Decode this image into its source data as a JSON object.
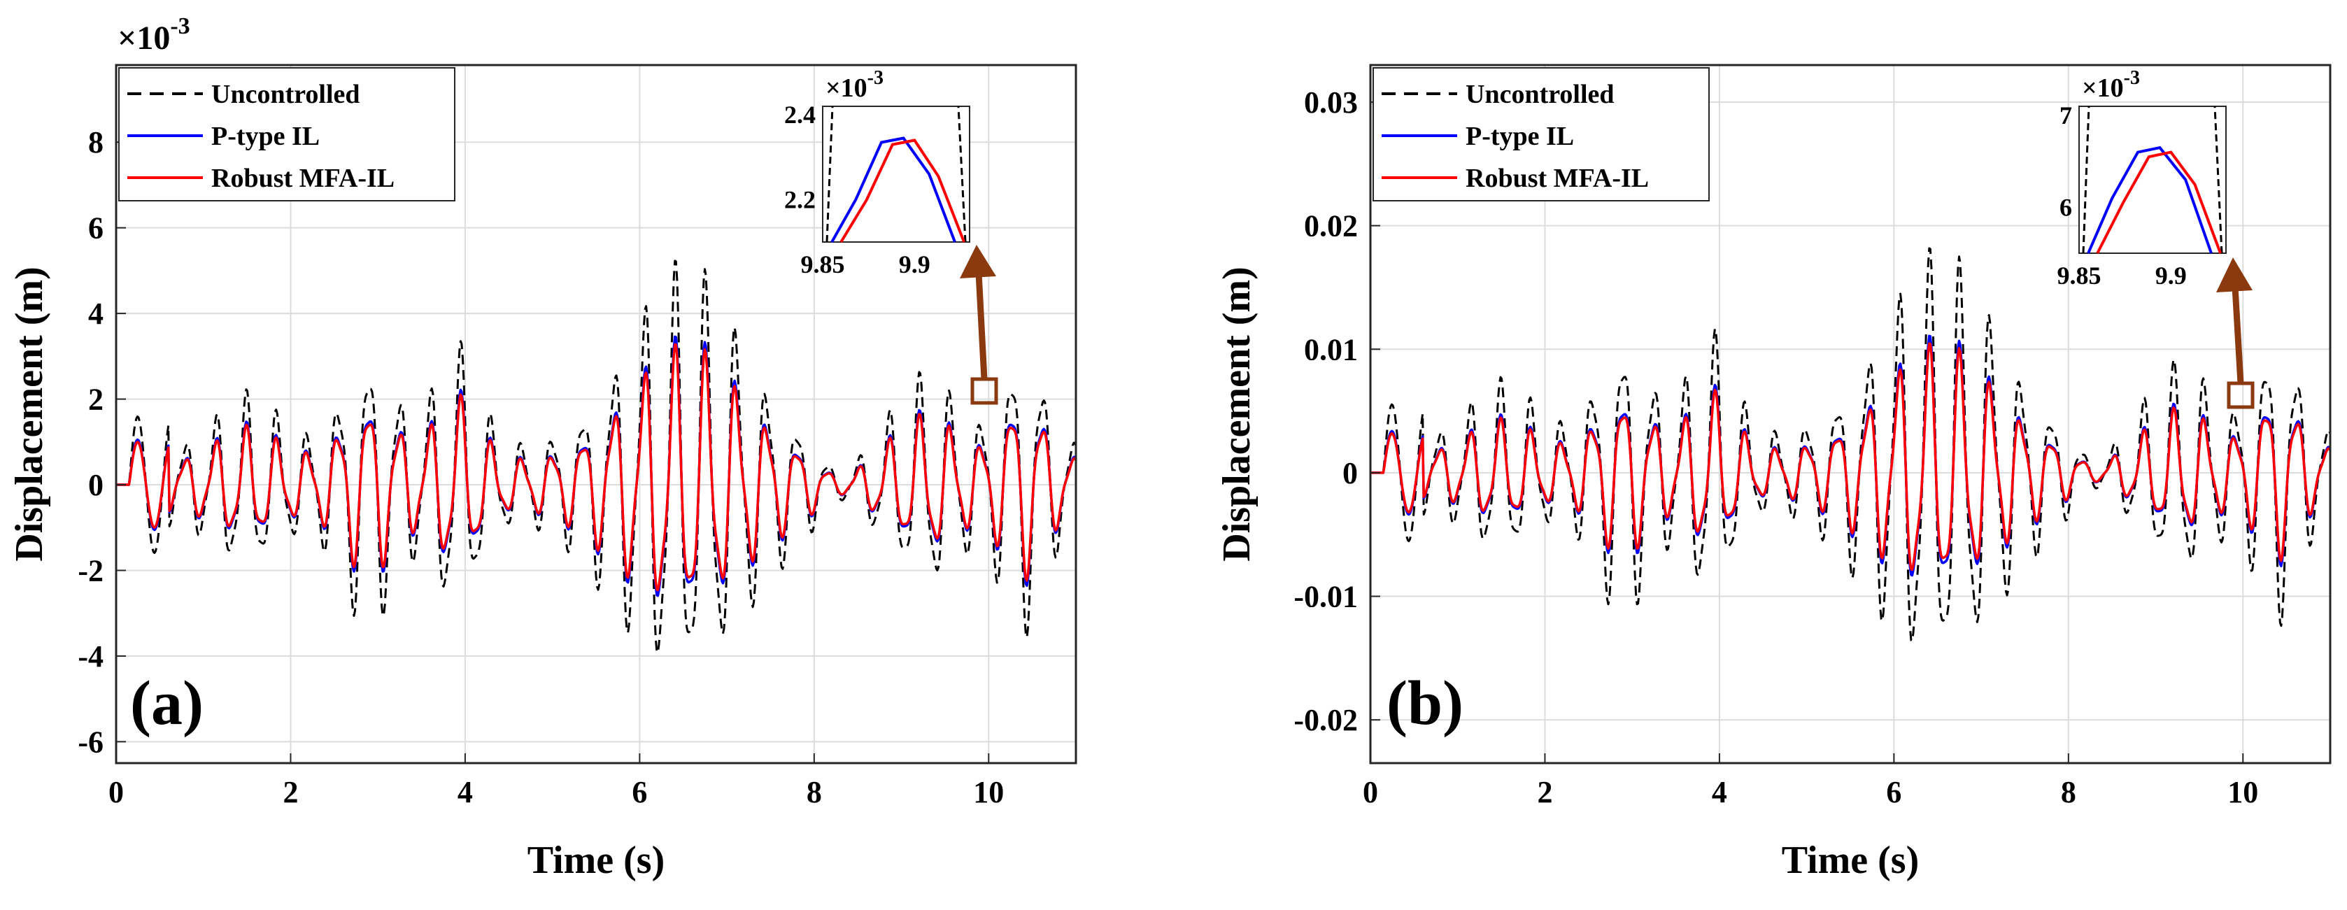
{
  "chart_data": [
    {
      "panel": "(a)",
      "type": "line",
      "xlabel": "Time (s)",
      "ylabel": "Displacement (m)",
      "xlim": [
        0,
        11
      ],
      "ylim": [
        -6.5,
        9.8
      ],
      "y_exponent_base": "×10",
      "y_exponent_power": "-3",
      "xticks": [
        0,
        2,
        4,
        6,
        8,
        10
      ],
      "yticks": [
        -6,
        -4,
        -2,
        0,
        2,
        4,
        6,
        8
      ],
      "ytick_labels": [
        "-6",
        "-4",
        "-2",
        "0",
        "2",
        "4",
        "6",
        "8"
      ],
      "grid": true,
      "legend_position": "top-left",
      "series": [
        {
          "name": "Uncontrolled",
          "color": "#000000",
          "style": "dashed",
          "peak": 5.9
        },
        {
          "name": "P-type IL",
          "color": "#0000ff",
          "style": "solid",
          "peak": 3.9
        },
        {
          "name": "Robust MFA-IL",
          "color": "#ff0000",
          "style": "solid",
          "peak": 3.7
        }
      ],
      "marker_point": {
        "x": 9.9,
        "y": 2.2
      },
      "inset": {
        "xlim": [
          9.85,
          9.93
        ],
        "ylim": [
          2.1,
          2.42
        ],
        "xticks": [
          9.85,
          9.9
        ],
        "xtick_labels": [
          "9.85",
          "9.9"
        ],
        "yticks": [
          2.2,
          2.4
        ],
        "ytick_labels": [
          "2.2",
          "2.4"
        ],
        "exponent_base": "×10",
        "exponent_power": "-3",
        "blue_x": [
          9.855,
          9.868,
          9.882,
          9.894,
          9.908,
          9.922
        ],
        "blue_y": [
          2.05,
          2.2,
          2.335,
          2.345,
          2.26,
          2.05
        ],
        "red_x": [
          9.86,
          9.874,
          9.888,
          9.9,
          9.913,
          9.927
        ],
        "red_y": [
          2.05,
          2.2,
          2.33,
          2.34,
          2.255,
          2.05
        ]
      }
    },
    {
      "panel": "(b)",
      "type": "line",
      "xlabel": "Time (s)",
      "ylabel": "Displacement (m)",
      "xlim": [
        0,
        11
      ],
      "ylim": [
        -0.0235,
        0.033
      ],
      "xticks": [
        0,
        2,
        4,
        6,
        8,
        10
      ],
      "yticks": [
        -0.02,
        -0.01,
        0,
        0.01,
        0.02,
        0.03
      ],
      "ytick_labels": [
        "-0.02",
        "-0.01",
        "0",
        "0.01",
        "0.02",
        "0.03"
      ],
      "grid": true,
      "legend_position": "top-left",
      "series": [
        {
          "name": "Uncontrolled",
          "color": "#000000",
          "style": "dashed",
          "peak": 0.0205
        },
        {
          "name": "P-type IL",
          "color": "#0000ff",
          "style": "solid",
          "peak": 0.0125
        },
        {
          "name": "Robust MFA-IL",
          "color": "#ff0000",
          "style": "solid",
          "peak": 0.0118
        }
      ],
      "marker_point": {
        "x": 9.9,
        "y": 0.0065
      },
      "inset": {
        "xlim": [
          9.85,
          9.93
        ],
        "ylim": [
          5.5,
          7.1
        ],
        "xticks": [
          9.85,
          9.9
        ],
        "xtick_labels": [
          "9.85",
          "9.9"
        ],
        "yticks": [
          6,
          7
        ],
        "ytick_labels": [
          "6",
          "7"
        ],
        "exponent_base": "×10",
        "exponent_power": "-3",
        "blue_x": [
          9.855,
          9.868,
          9.882,
          9.894,
          9.908,
          9.922
        ],
        "blue_y": [
          5.4,
          6.1,
          6.6,
          6.65,
          6.3,
          5.4
        ],
        "red_x": [
          9.86,
          9.874,
          9.888,
          9.9,
          9.913,
          9.927
        ],
        "red_y": [
          5.4,
          6.05,
          6.55,
          6.6,
          6.25,
          5.4
        ]
      }
    }
  ]
}
